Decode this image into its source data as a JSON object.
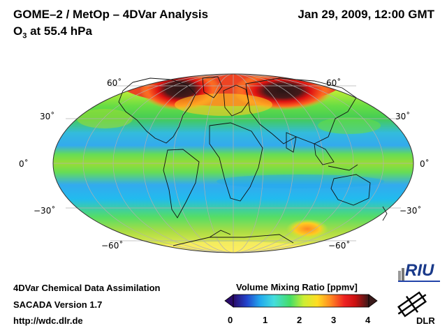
{
  "header": {
    "title": "GOME–2 / MetOp – 4DVar Analysis",
    "species_main": "O",
    "species_sub": "3",
    "level": " at 55.4 hPa",
    "datetime": "Jan 29, 2009, 12:00 GMT"
  },
  "map": {
    "projection": "Mollweide",
    "lat_labels": [
      "60˚",
      "30˚",
      "0˚",
      "−30˚",
      "−60˚"
    ],
    "field": "Ozone volume mixing ratio"
  },
  "footer": {
    "line1": "4DVar Chemical Data Assimilation",
    "line2": "SACADA Version 1.7",
    "line3": "http://wdc.dlr.de"
  },
  "colorbar": {
    "title": "Volume Mixing Ratio [ppmv]",
    "ticks": [
      "0",
      "1",
      "2",
      "3",
      "4"
    ],
    "range": [
      0,
      4
    ],
    "colors": [
      "#2a0a6a",
      "#2244cc",
      "#22aaee",
      "#44dddd",
      "#44dd66",
      "#ccee33",
      "#ffdd22",
      "#ff8822",
      "#ee2222",
      "#cc1111",
      "#3a1a1a"
    ]
  },
  "logos": {
    "riu": "RIU",
    "dlr": "DLR"
  }
}
